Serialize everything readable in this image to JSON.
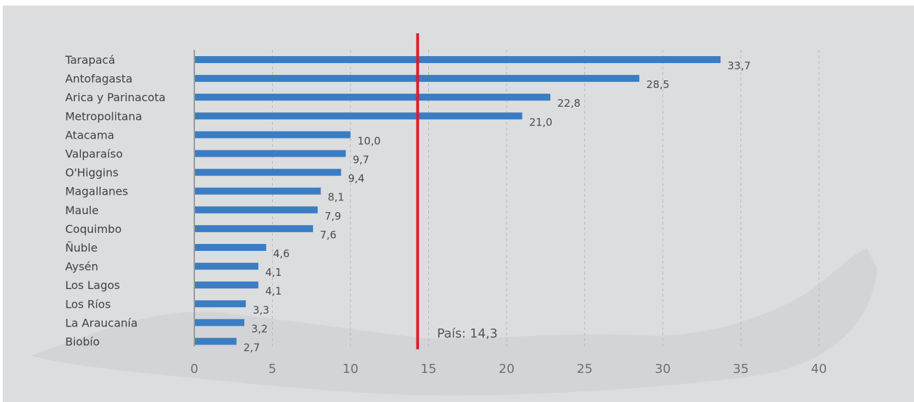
{
  "chart_data": {
    "type": "bar",
    "orientation": "horizontal",
    "categories": [
      "Tarapacá",
      "Antofagasta",
      "Arica y Parinacota",
      "Metropolitana",
      "Atacama",
      "Valparaíso",
      "O'Higgins",
      "Magallanes",
      "Maule",
      "Coquimbo",
      "Ñuble",
      "Aysén",
      "Los Lagos",
      "Los Ríos",
      "La Araucanía",
      "Biobío"
    ],
    "values": [
      33.7,
      28.5,
      22.8,
      21.0,
      10.0,
      9.7,
      9.4,
      8.1,
      7.9,
      7.6,
      4.6,
      4.1,
      4.1,
      3.3,
      3.2,
      2.7
    ],
    "value_labels": [
      "33,7",
      "28,5",
      "22,8",
      "21,0",
      "10,0",
      "9,7",
      "9,4",
      "8,1",
      "7,9",
      "7,6",
      "4,6",
      "4,1",
      "4,1",
      "3,3",
      "3,2",
      "2,7"
    ],
    "xticks": [
      0,
      5,
      10,
      15,
      20,
      25,
      30,
      35,
      40
    ],
    "xlim": [
      0,
      40
    ],
    "grid": "vertical-dashed",
    "reference_line": {
      "value": 14.3,
      "label": "País: 14,3"
    },
    "title": "",
    "xlabel": "",
    "ylabel": ""
  },
  "colors": {
    "background": "#dcdddf",
    "bar": "#3b7dc4",
    "reference_line": "#e01b24",
    "grid": "#b9b9b9",
    "axis": "#9a9a9a",
    "map_silhouette": "#cdcfd2"
  }
}
